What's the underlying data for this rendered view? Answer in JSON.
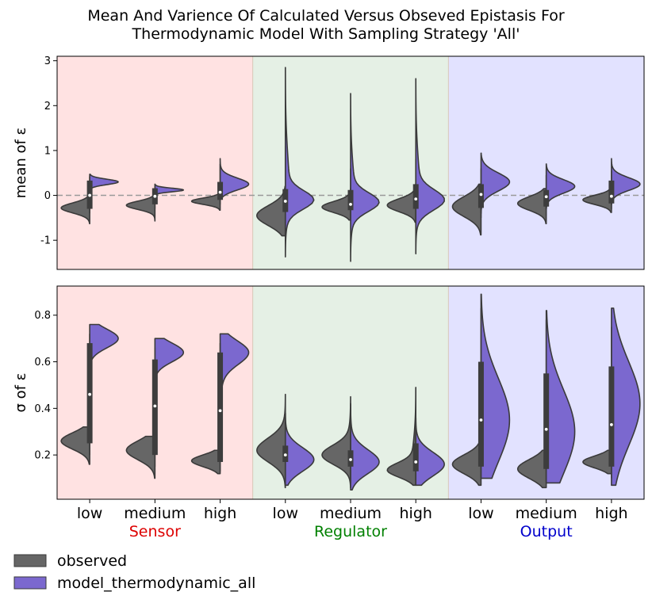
{
  "chart_data": {
    "type": "violin",
    "title_lines": [
      "Mean And Varience Of Calculated Versus Obseved Epistasis For",
      "Thermodynamic Model With Sampling Strategy 'All'"
    ],
    "categories": [
      "low",
      "medium",
      "high",
      "low",
      "medium",
      "high",
      "low",
      "medium",
      "high"
    ],
    "groups": [
      {
        "name": "Sensor",
        "color": "#dd0000",
        "background": "#ffe2e2"
      },
      {
        "name": "Regulator",
        "color": "#008000",
        "background": "#e5f0e5"
      },
      {
        "name": "Output",
        "color": "#0000cc",
        "background": "#e2e2ff"
      }
    ],
    "series": [
      {
        "name": "observed",
        "color": "#666666"
      },
      {
        "name": "model_thermodynamic_all",
        "color": "#7b68cf"
      }
    ],
    "panels": [
      {
        "ylabel": "mean of ε",
        "ylim": [
          -1.65,
          3.1
        ],
        "yticks": [
          -1,
          0,
          1,
          2,
          3
        ],
        "reference_line": 0,
        "violins": [
          {
            "observed": {
              "min": -0.63,
              "max": 0.08,
              "mode": -0.28,
              "spread": 0.11
            },
            "model": {
              "min": 0.13,
              "max": 0.47,
              "mode": 0.3,
              "spread": 0.06
            },
            "box": {
              "q1": -0.3,
              "median": 0.0,
              "q3": 0.33,
              "whislo": -0.4,
              "whishi": 0.42
            }
          },
          {
            "observed": {
              "min": -0.57,
              "max": 0.02,
              "mode": -0.22,
              "spread": 0.09
            },
            "model": {
              "min": 0.0,
              "max": 0.25,
              "mode": 0.12,
              "spread": 0.04
            },
            "box": {
              "q1": -0.2,
              "median": -0.02,
              "q3": 0.16,
              "whislo": -0.3,
              "whishi": 0.23
            }
          },
          {
            "observed": {
              "min": -0.33,
              "max": 0.04,
              "mode": -0.13,
              "spread": 0.07
            },
            "model": {
              "min": -0.05,
              "max": 0.82,
              "mode": 0.25,
              "spread": 0.13
            },
            "box": {
              "q1": -0.1,
              "median": 0.07,
              "q3": 0.3,
              "whislo": -0.2,
              "whishi": 0.7
            }
          },
          {
            "observed": {
              "min": -0.9,
              "max": 0.2,
              "mode": -0.45,
              "spread": 0.22
            },
            "model": {
              "min": -1.37,
              "max": 2.85,
              "mode": -0.1,
              "spread": 0.2
            },
            "box": {
              "q1": -0.37,
              "median": -0.13,
              "q3": 0.14,
              "whislo": -0.6,
              "whishi": 1.1
            }
          },
          {
            "observed": {
              "min": -0.55,
              "max": 0.15,
              "mode": -0.26,
              "spread": 0.12
            },
            "model": {
              "min": -1.47,
              "max": 2.27,
              "mode": -0.15,
              "spread": 0.2
            },
            "box": {
              "q1": -0.33,
              "median": -0.2,
              "q3": 0.12,
              "whislo": -0.55,
              "whishi": 0.6
            }
          },
          {
            "observed": {
              "min": -0.6,
              "max": 0.25,
              "mode": -0.22,
              "spread": 0.14
            },
            "model": {
              "min": -1.3,
              "max": 2.6,
              "mode": -0.1,
              "spread": 0.22
            },
            "box": {
              "q1": -0.3,
              "median": -0.08,
              "q3": 0.25,
              "whislo": -0.55,
              "whishi": 0.8
            }
          },
          {
            "observed": {
              "min": -0.88,
              "max": 0.25,
              "mode": -0.25,
              "spread": 0.22
            },
            "model": {
              "min": -0.4,
              "max": 0.94,
              "mode": 0.3,
              "spread": 0.2
            },
            "box": {
              "q1": -0.28,
              "median": 0.02,
              "q3": 0.25,
              "whislo": -0.5,
              "whishi": 0.6
            }
          },
          {
            "observed": {
              "min": -0.63,
              "max": 0.15,
              "mode": -0.18,
              "spread": 0.15
            },
            "model": {
              "min": -0.3,
              "max": 0.7,
              "mode": 0.2,
              "spread": 0.15
            },
            "box": {
              "q1": -0.25,
              "median": -0.03,
              "q3": 0.12,
              "whislo": -0.45,
              "whishi": 0.45
            }
          },
          {
            "observed": {
              "min": -0.38,
              "max": 0.15,
              "mode": -0.1,
              "spread": 0.1
            },
            "model": {
              "min": -0.2,
              "max": 0.82,
              "mode": 0.25,
              "spread": 0.14
            },
            "box": {
              "q1": -0.18,
              "median": -0.02,
              "q3": 0.33,
              "whislo": -0.3,
              "whishi": 0.55
            }
          }
        ]
      },
      {
        "ylabel": "σ of ε",
        "ylim": [
          0.01,
          0.925
        ],
        "yticks": [
          0.2,
          0.4,
          0.6,
          0.8
        ],
        "reference_line": null,
        "violins": [
          {
            "observed": {
              "min": 0.16,
              "max": 0.32,
              "mode": 0.26,
              "spread": 0.035
            },
            "model": {
              "min": 0.59,
              "max": 0.76,
              "mode": 0.7,
              "spread": 0.04
            },
            "box": {
              "q1": 0.25,
              "median": 0.46,
              "q3": 0.68,
              "whislo": 0.2,
              "whishi": 0.72
            }
          },
          {
            "observed": {
              "min": 0.1,
              "max": 0.28,
              "mode": 0.22,
              "spread": 0.04
            },
            "model": {
              "min": 0.52,
              "max": 0.7,
              "mode": 0.64,
              "spread": 0.04
            },
            "box": {
              "q1": 0.2,
              "median": 0.41,
              "q3": 0.61,
              "whislo": 0.15,
              "whishi": 0.66
            }
          },
          {
            "observed": {
              "min": 0.12,
              "max": 0.22,
              "mode": 0.175,
              "spread": 0.025
            },
            "model": {
              "min": 0.3,
              "max": 0.72,
              "mode": 0.64,
              "spread": 0.05
            },
            "box": {
              "q1": 0.17,
              "median": 0.39,
              "q3": 0.64,
              "whislo": 0.13,
              "whishi": 0.68
            }
          },
          {
            "observed": {
              "min": 0.06,
              "max": 0.46,
              "mode": 0.22,
              "spread": 0.05
            },
            "model": {
              "min": 0.07,
              "max": 0.38,
              "mode": 0.18,
              "spread": 0.05
            },
            "box": {
              "q1": 0.17,
              "median": 0.2,
              "q3": 0.24,
              "whislo": 0.09,
              "whishi": 0.33
            }
          },
          {
            "observed": {
              "min": 0.06,
              "max": 0.45,
              "mode": 0.2,
              "spread": 0.04
            },
            "model": {
              "min": 0.05,
              "max": 0.42,
              "mode": 0.17,
              "spread": 0.05
            },
            "box": {
              "q1": 0.15,
              "median": 0.18,
              "q3": 0.22,
              "whislo": 0.08,
              "whishi": 0.3
            }
          },
          {
            "observed": {
              "min": 0.07,
              "max": 0.49,
              "mode": 0.135,
              "spread": 0.03
            },
            "model": {
              "min": 0.07,
              "max": 0.36,
              "mode": 0.16,
              "spread": 0.05
            },
            "box": {
              "q1": 0.13,
              "median": 0.17,
              "q3": 0.25,
              "whislo": 0.09,
              "whishi": 0.32
            }
          },
          {
            "observed": {
              "min": 0.07,
              "max": 0.26,
              "mode": 0.16,
              "spread": 0.04
            },
            "model": {
              "min": 0.1,
              "max": 0.89,
              "mode": 0.35,
              "spread": 0.18
            },
            "box": {
              "q1": 0.15,
              "median": 0.35,
              "q3": 0.6,
              "whislo": 0.1,
              "whishi": 0.83
            }
          },
          {
            "observed": {
              "min": 0.06,
              "max": 0.22,
              "mode": 0.14,
              "spread": 0.04
            },
            "model": {
              "min": 0.08,
              "max": 0.82,
              "mode": 0.3,
              "spread": 0.18
            },
            "box": {
              "q1": 0.14,
              "median": 0.31,
              "q3": 0.55,
              "whislo": 0.08,
              "whishi": 0.78
            }
          },
          {
            "observed": {
              "min": 0.12,
              "max": 0.22,
              "mode": 0.17,
              "spread": 0.025
            },
            "model": {
              "min": 0.07,
              "max": 0.83,
              "mode": 0.42,
              "spread": 0.18
            },
            "box": {
              "q1": 0.15,
              "median": 0.33,
              "q3": 0.58,
              "whislo": 0.1,
              "whishi": 0.75
            }
          }
        ]
      }
    ]
  }
}
